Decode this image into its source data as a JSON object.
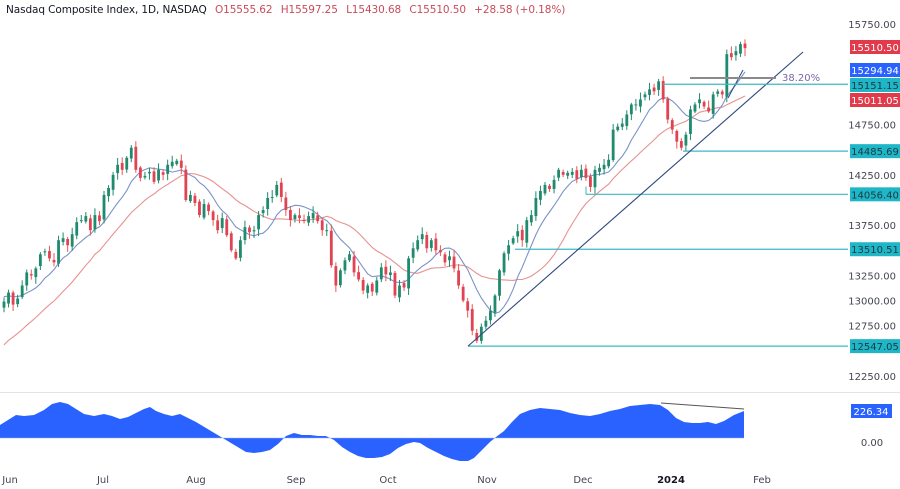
{
  "header": {
    "symbol": "Nasdaq Composite Index, 1D, NASDAQ",
    "open": "O15555.62",
    "high": "H15597.25",
    "low": "L15430.68",
    "close": "C15510.50",
    "change": "+28.58 (+0.18%)"
  },
  "colors": {
    "up": "#26a69a",
    "up_body": "#1f8a6e",
    "down": "#ef5350",
    "down_body": "#e04354",
    "ma_fast": "#7b93c8",
    "ma_slow": "#e89191",
    "support": "#3db8c4",
    "trendline": "#2f4a7e",
    "oscillator": "#2962ff",
    "tag_red": "#e03a4b",
    "tag_blue": "#2962ff",
    "tag_teal": "#1fb6c8"
  },
  "price_axis": {
    "labels": [
      "15750.00",
      "14750.00",
      "14250.00",
      "13750.00",
      "13250.00",
      "13000.00",
      "12750.00",
      "12250.00"
    ],
    "tags": [
      {
        "value": "15510.50",
        "kind": "last-price"
      },
      {
        "value": "15294.94",
        "kind": "ma-fast"
      },
      {
        "value": "15151.15",
        "kind": "fib-level"
      },
      {
        "value": "15011.05",
        "kind": "ma-slow"
      },
      {
        "value": "14485.69",
        "kind": "support"
      },
      {
        "value": "14056.40",
        "kind": "support"
      },
      {
        "value": "13510.51",
        "kind": "support"
      },
      {
        "value": "12547.05",
        "kind": "support"
      }
    ]
  },
  "oscillator_axis": {
    "value_tag": "226.34",
    "zero_label": "0.00"
  },
  "fib_label": "38.20%",
  "time_axis": {
    "labels": [
      {
        "text": "Jun",
        "bold": false
      },
      {
        "text": "Jul",
        "bold": false
      },
      {
        "text": "Aug",
        "bold": false
      },
      {
        "text": "Sep",
        "bold": false
      },
      {
        "text": "Oct",
        "bold": false
      },
      {
        "text": "Nov",
        "bold": false
      },
      {
        "text": "Dec",
        "bold": false
      },
      {
        "text": "2024",
        "bold": true
      },
      {
        "text": "Feb",
        "bold": false
      }
    ]
  },
  "chart_data": {
    "type": "candlestick",
    "title": "Nasdaq Composite Index, 1D, NASDAQ",
    "xlabel": "",
    "ylabel": "Price",
    "ylim": [
      12150,
      15850
    ],
    "x_ticks": [
      "Jun",
      "Jul",
      "Aug",
      "Sep",
      "Oct",
      "Nov",
      "Dec",
      "2024",
      "Feb"
    ],
    "y_ticks": [
      12250,
      12750,
      13000,
      13250,
      13750,
      14250,
      14750,
      15750
    ],
    "last": {
      "open": 15555.62,
      "high": 15597.25,
      "low": 15430.68,
      "close": 15510.5,
      "change": 28.58,
      "change_pct": 0.18
    },
    "closes_approx": [
      12990,
      13080,
      12960,
      13020,
      13150,
      13280,
      13250,
      13320,
      13460,
      13490,
      13420,
      13380,
      13600,
      13620,
      13550,
      13660,
      13780,
      13800,
      13840,
      13700,
      13850,
      13790,
      14050,
      14120,
      14250,
      14350,
      14300,
      14420,
      14520,
      14300,
      14220,
      14240,
      14280,
      14180,
      14300,
      14250,
      14350,
      14380,
      14390,
      14320,
      14000,
      14050,
      13970,
      13850,
      13960,
      13890,
      13800,
      13700,
      13820,
      13650,
      13500,
      13420,
      13600,
      13730,
      13680,
      13700,
      13850,
      13900,
      14020,
      14030,
      14150,
      14030,
      13900,
      13800,
      13850,
      13820,
      13790,
      13840,
      13870,
      13790,
      13700,
      13700,
      13350,
      13150,
      13300,
      13400,
      13460,
      13280,
      13210,
      13100,
      13150,
      13090,
      13200,
      13330,
      13260,
      13280,
      13050,
      13150,
      13130,
      13420,
      13520,
      13600,
      13660,
      13520,
      13600,
      13500,
      13480,
      13380,
      13440,
      13320,
      13150,
      13000,
      12900,
      12700,
      12600,
      12740,
      12800,
      12900,
      13050,
      13300,
      13470,
      13550,
      13620,
      13690,
      13600,
      13800,
      13850,
      14020,
      14090,
      14150,
      14110,
      14200,
      14300,
      14250,
      14270,
      14280,
      14210,
      14300,
      14220,
      14130,
      14300,
      14320,
      14350,
      14400,
      14700,
      14730,
      14760,
      14850,
      14950,
      14950,
      15000,
      15050,
      15100,
      15080,
      15180,
      15000,
      14800,
      14700,
      14580,
      14520,
      14650,
      14900,
      14950,
      15000,
      14930,
      14880,
      15050,
      15080,
      15050,
      15450,
      15420,
      15480,
      15550,
      15510
    ],
    "support_levels": [
      14485.69,
      14056.4,
      13510.51,
      12547.05
    ],
    "fib_level": {
      "label": "38.20%",
      "value": 15151.15
    },
    "moving_averages": [
      {
        "name": "MA fast",
        "last": 15294.94
      },
      {
        "name": "MA slow",
        "last": 15011.05
      }
    ],
    "trendline": {
      "from": {
        "x": "late Oct",
        "y": 12547.05
      },
      "to": {
        "x": "late Jan",
        "y": 15450
      }
    },
    "oscillator": {
      "type": "area",
      "last": 226.34,
      "zero": 0.0,
      "shape": "positive Jun-Sep, negative Sep-Nov, positive Nov-Jan with bearish divergence line at end"
    }
  }
}
